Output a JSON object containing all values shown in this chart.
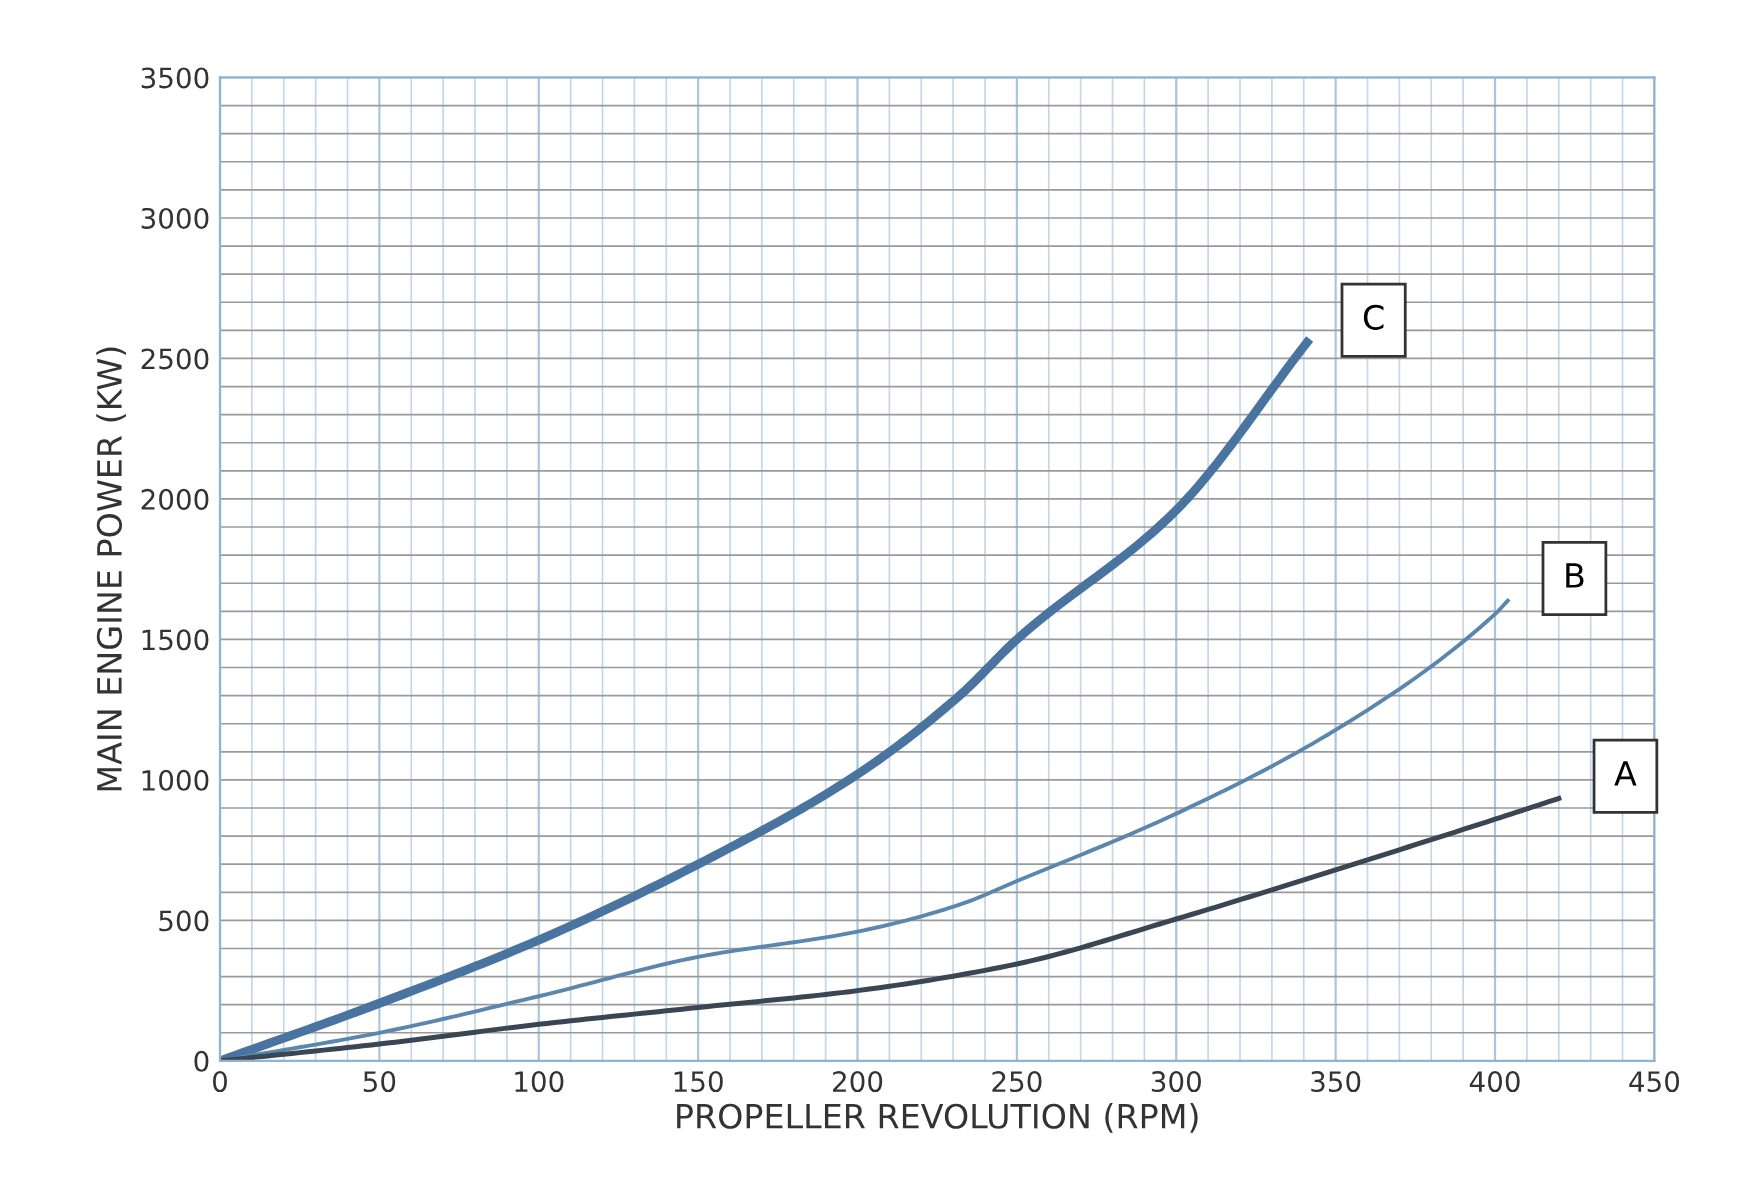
{
  "chart_data": {
    "type": "line",
    "xlabel": "PROPELLER REVOLUTION (RPM)",
    "ylabel": "MAIN ENGINE POWER (KW)",
    "xlim": [
      0,
      450
    ],
    "xticks": [
      0,
      50,
      100,
      150,
      200,
      250,
      300,
      350,
      400,
      450
    ],
    "ylim": [
      0,
      3500
    ],
    "yticks": [
      0,
      500,
      1000,
      1500,
      2000,
      2500,
      3000,
      3500
    ],
    "grid": true,
    "marker": "none",
    "line_style": "solid",
    "legend": false,
    "series": [
      {
        "name": "C",
        "color": "#4a74a0",
        "x": [
          0,
          50,
          100,
          150,
          200,
          232,
          250,
          300,
          341
        ],
        "values": [
          0,
          205,
          430,
          700,
          1020,
          1300,
          1500,
          1960,
          2557
        ]
      },
      {
        "name": "B",
        "color": "#5b86ae",
        "x": [
          0,
          50,
          100,
          150,
          200,
          232,
          250,
          300,
          350,
          400,
          404
        ],
        "values": [
          0,
          100,
          230,
          370,
          460,
          556,
          640,
          880,
          1178,
          1590,
          1638
        ]
      },
      {
        "name": "A",
        "color": "#3b4654",
        "x": [
          0,
          50,
          100,
          150,
          200,
          250,
          300,
          350,
          400,
          420
        ],
        "values": [
          0,
          60,
          130,
          190,
          250,
          345,
          505,
          680,
          860,
          934
        ]
      }
    ]
  }
}
